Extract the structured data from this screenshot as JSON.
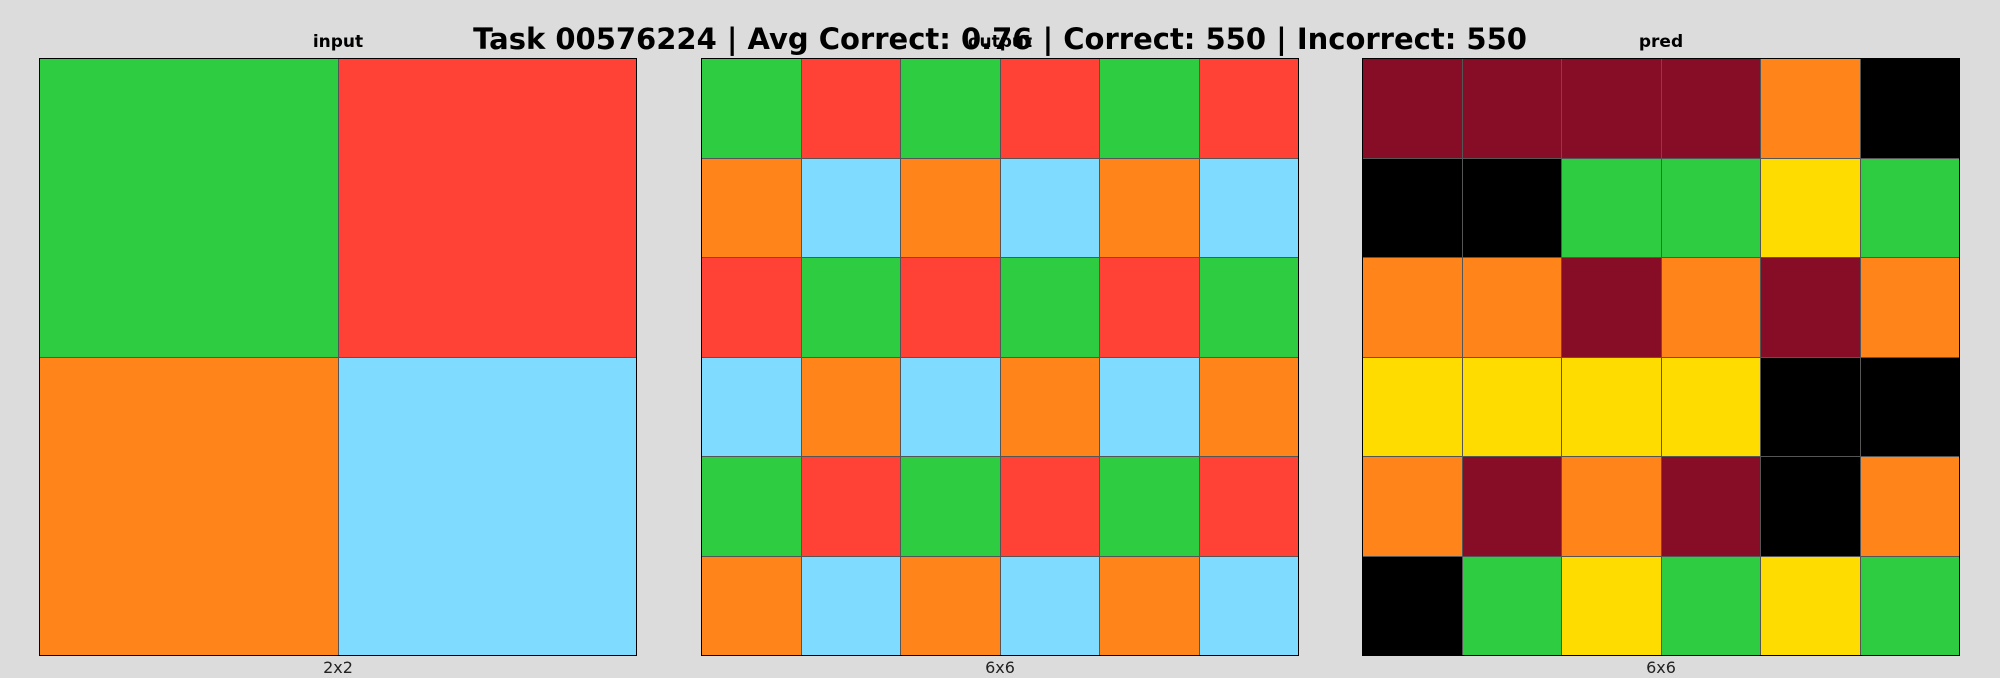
{
  "title": "Task 00576224 | Avg Correct: 0.76 | Correct: 550 | Incorrect: 550",
  "palette": {
    "0": "#000000",
    "2": "#ff4136",
    "3": "#2ecc40",
    "4": "#ffdc00",
    "7": "#ff851b",
    "8": "#7fdbff",
    "9": "#870c25"
  },
  "panels": [
    {
      "label": "input",
      "size": "2x2",
      "grid": [
        [
          3,
          2
        ],
        [
          7,
          8
        ]
      ]
    },
    {
      "label": "output",
      "size": "6x6",
      "grid": [
        [
          3,
          2,
          3,
          2,
          3,
          2
        ],
        [
          7,
          8,
          7,
          8,
          7,
          8
        ],
        [
          2,
          3,
          2,
          3,
          2,
          3
        ],
        [
          8,
          7,
          8,
          7,
          8,
          7
        ],
        [
          3,
          2,
          3,
          2,
          3,
          2
        ],
        [
          7,
          8,
          7,
          8,
          7,
          8
        ]
      ]
    },
    {
      "label": "pred",
      "size": "6x6",
      "grid": [
        [
          9,
          9,
          9,
          9,
          7,
          0
        ],
        [
          0,
          0,
          3,
          3,
          4,
          3
        ],
        [
          7,
          7,
          9,
          7,
          9,
          7
        ],
        [
          4,
          4,
          4,
          4,
          0,
          0
        ],
        [
          7,
          9,
          7,
          9,
          0,
          7
        ],
        [
          0,
          3,
          4,
          3,
          4,
          3
        ]
      ]
    }
  ]
}
